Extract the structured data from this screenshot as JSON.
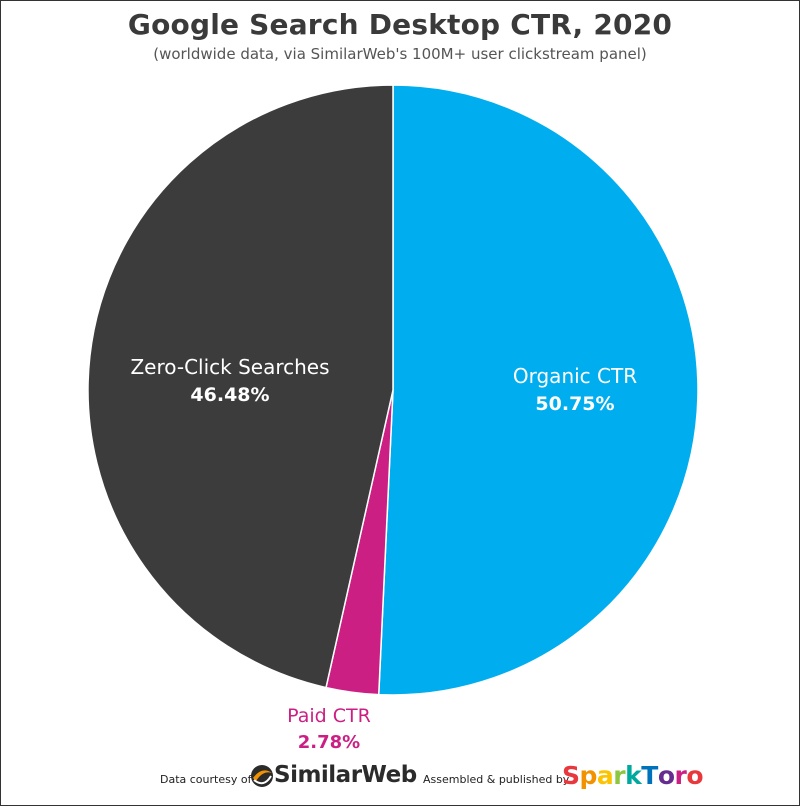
{
  "chart_data": {
    "type": "pie",
    "title": "Google Search Desktop CTR, 2020",
    "subtitle": "(worldwide data, via SimilarWeb's 100M+ user clickstream panel)",
    "slices": [
      {
        "label": "Organic CTR",
        "value": 50.75,
        "display": "50.75%",
        "color": "#00AEEF"
      },
      {
        "label": "Paid CTR",
        "value": 2.78,
        "display": "2.78%",
        "color": "#CC1F84"
      },
      {
        "label": "Zero-Click Searches",
        "value": 46.48,
        "display": "46.48%",
        "color": "#3D3C3C"
      }
    ]
  },
  "footer": {
    "courtesy_text": "Data courtesy of",
    "similarweb_logo_text": "SimilarWeb",
    "assembled_text": "Assembled & published by",
    "sparktoro_logo_text": "SparkToro",
    "sparktoro_letter_colors": [
      "#E8383D",
      "#F39200",
      "#FCC400",
      "#8DC63F",
      "#00A99D",
      "#0072BC",
      "#662D91",
      "#CC1F84",
      "#E8383D"
    ]
  }
}
